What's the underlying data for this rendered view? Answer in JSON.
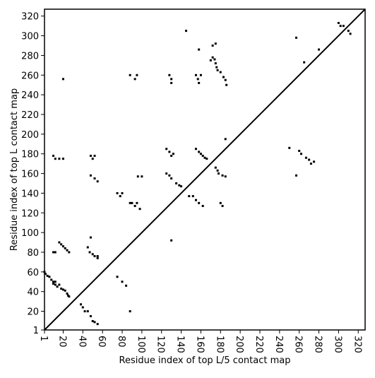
{
  "chart_data": {
    "type": "scatter",
    "xlabel": "Residue index of top L/5 contact map",
    "ylabel": "Residue index of top L contact map",
    "xlim": [
      1,
      327
    ],
    "ylim": [
      1,
      327
    ],
    "xticks": [
      1,
      20,
      40,
      60,
      80,
      100,
      120,
      140,
      160,
      180,
      200,
      220,
      240,
      260,
      280,
      300,
      320
    ],
    "yticks": [
      1,
      20,
      40,
      60,
      80,
      100,
      120,
      140,
      160,
      180,
      200,
      220,
      240,
      260,
      280,
      300,
      320
    ],
    "diagonal": true,
    "color": "#000000",
    "x": [
      1,
      2,
      4,
      6,
      8,
      10,
      10,
      12,
      12,
      14,
      16,
      18,
      20,
      22,
      24,
      25,
      26,
      38,
      40,
      42,
      45,
      48,
      50,
      52,
      55,
      10,
      12,
      16,
      18,
      20,
      22,
      24,
      26,
      45,
      47,
      48,
      50,
      52,
      55,
      55,
      10,
      12,
      16,
      20,
      48,
      50,
      52,
      48,
      52,
      55,
      20,
      75,
      78,
      80,
      75,
      80,
      84,
      88,
      90,
      93,
      95,
      98,
      96,
      100,
      88,
      88,
      93,
      95,
      125,
      128,
      130,
      132,
      125,
      128,
      130,
      135,
      138,
      140,
      128,
      130,
      130,
      130,
      145,
      148,
      152,
      155,
      158,
      162,
      155,
      158,
      160,
      162,
      164,
      166,
      155,
      157,
      158,
      160,
      158,
      170,
      172,
      174,
      175,
      176,
      177,
      180,
      183,
      185,
      186,
      172,
      175,
      175,
      177,
      178,
      182,
      185,
      180,
      182,
      185,
      250,
      257,
      257,
      260,
      262,
      267,
      270,
      272,
      275,
      265,
      280,
      300,
      302,
      305,
      310,
      312
    ],
    "y": [
      60,
      58,
      56,
      55,
      52,
      50,
      48,
      50,
      47,
      45,
      47,
      43,
      42,
      41,
      38,
      36,
      35,
      27,
      24,
      20,
      20,
      15,
      10,
      9,
      7,
      80,
      80,
      90,
      88,
      86,
      84,
      82,
      80,
      85,
      80,
      95,
      78,
      76,
      74,
      76,
      178,
      175,
      175,
      175,
      178,
      175,
      178,
      158,
      155,
      152,
      256,
      140,
      137,
      140,
      55,
      50,
      46,
      130,
      130,
      127,
      130,
      124,
      157,
      157,
      20,
      260,
      256,
      260,
      185,
      182,
      178,
      180,
      160,
      158,
      155,
      150,
      148,
      147,
      260,
      256,
      252,
      92,
      305,
      137,
      137,
      133,
      130,
      127,
      185,
      182,
      180,
      178,
      176,
      175,
      260,
      256,
      252,
      260,
      286,
      275,
      278,
      276,
      272,
      268,
      265,
      263,
      258,
      255,
      250,
      290,
      292,
      166,
      163,
      160,
      158,
      157,
      130,
      127,
      195,
      186,
      158,
      298,
      183,
      180,
      176,
      174,
      170,
      172,
      273,
      286,
      313,
      310,
      310,
      305,
      302
    ]
  }
}
